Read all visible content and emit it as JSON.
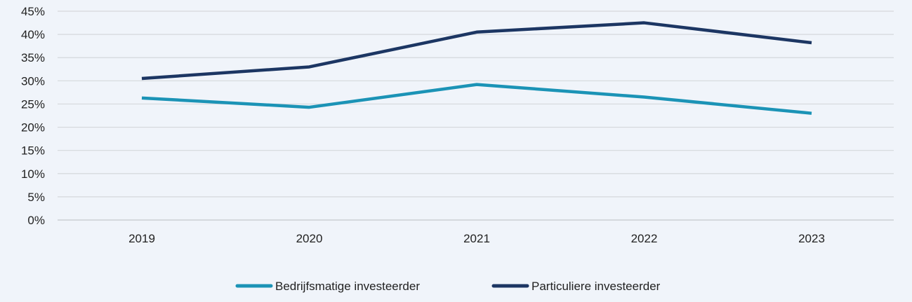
{
  "chart_data": {
    "type": "line",
    "title": "",
    "xlabel": "",
    "ylabel": "",
    "categories": [
      "2019",
      "2020",
      "2021",
      "2022",
      "2023"
    ],
    "ylim": [
      0,
      45
    ],
    "yticks": [
      "0%",
      "5%",
      "10%",
      "15%",
      "20%",
      "25%",
      "30%",
      "35%",
      "40%",
      "45%"
    ],
    "grid": true,
    "legend_position": "bottom",
    "series": [
      {
        "name": "Bedrijfsmatige investeerder",
        "color": "#1b93b6",
        "values": [
          26.3,
          24.3,
          29.2,
          26.5,
          23.0
        ]
      },
      {
        "name": "Particuliere investeerder",
        "color": "#1c3663",
        "values": [
          30.5,
          33.0,
          40.5,
          42.5,
          38.2
        ]
      }
    ]
  }
}
